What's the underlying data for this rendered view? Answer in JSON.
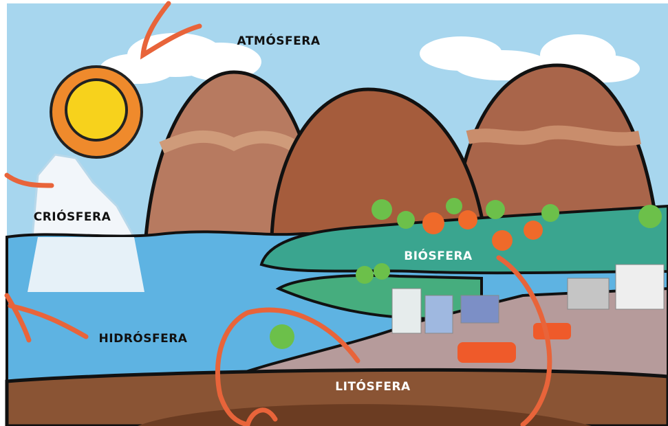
{
  "labels": [
    "ATMÓSFERA",
    "CRIÓSFERA",
    "BIÓSFERA",
    "HIDRÓSFERA",
    "LITÓSFERA"
  ]
}
